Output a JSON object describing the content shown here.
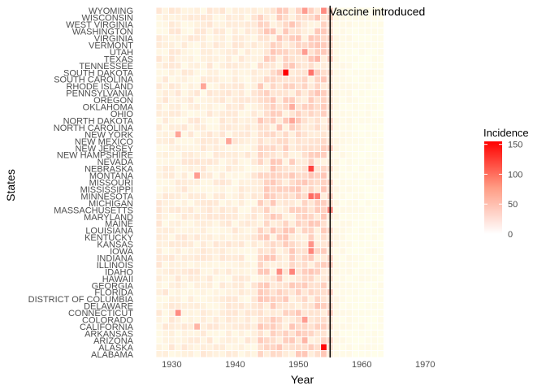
{
  "chart_data": {
    "type": "heatmap",
    "title": "",
    "xlabel": "Year",
    "ylabel": "States",
    "xlim": [
      1927,
      1976
    ],
    "x_ticks": [
      1930,
      1940,
      1950,
      1960,
      1970
    ],
    "y_categories": [
      "ALABAMA",
      "ALASKA",
      "ARIZONA",
      "ARKANSAS",
      "CALIFORNIA",
      "COLORADO",
      "CONNECTICUT",
      "DELAWARE",
      "DISTRICT OF COLUMBIA",
      "FLORIDA",
      "GEORGIA",
      "HAWAII",
      "IDAHO",
      "ILLINOIS",
      "INDIANA",
      "IOWA",
      "KANSAS",
      "KENTUCKY",
      "LOUISIANA",
      "MAINE",
      "MARYLAND",
      "MASSACHUSETTS",
      "MICHIGAN",
      "MINNESOTA",
      "MISSISSIPPI",
      "MISSOURI",
      "MONTANA",
      "NEBRASKA",
      "NEVADA",
      "NEW HAMPSHIRE",
      "NEW JERSEY",
      "NEW MEXICO",
      "NEW YORK",
      "NORTH CAROLINA",
      "NORTH DAKOTA",
      "OHIO",
      "OKLAHOMA",
      "OREGON",
      "PENNSYLVANIA",
      "RHODE ISLAND",
      "SOUTH CAROLINA",
      "SOUTH DAKOTA",
      "TENNESSEE",
      "TEXAS",
      "UTAH",
      "VERMONT",
      "VIRGINIA",
      "WASHINGTON",
      "WEST VIRGINIA",
      "WISCONSIN",
      "WYOMING"
    ],
    "years": [
      1928,
      1963
    ],
    "grid": false,
    "legend": {
      "title": "Incidence",
      "ticks": [
        0,
        50,
        100,
        150
      ],
      "range": [
        0,
        155
      ],
      "low_color": "#ffffff",
      "high_color": "#ff0000",
      "placement": "right"
    },
    "vline": {
      "x": 1955,
      "label": "Vaccine introduced"
    },
    "highlights": [
      {
        "state": "SOUTH DAKOTA",
        "year": 1948,
        "value": 155
      },
      {
        "state": "ALASKA",
        "year": 1954,
        "value": 150
      },
      {
        "state": "NEBRASKA",
        "year": 1952,
        "value": 115
      },
      {
        "state": "SOUTH DAKOTA",
        "year": 1952,
        "value": 85
      },
      {
        "state": "MINNESOTA",
        "year": 1952,
        "value": 90
      },
      {
        "state": "MINNESOTA",
        "year": 1953,
        "value": 80
      },
      {
        "state": "MASSACHUSETTS",
        "year": 1955,
        "value": 75
      },
      {
        "state": "IDAHO",
        "year": 1947,
        "value": 70
      },
      {
        "state": "IDAHO",
        "year": 1949,
        "value": 75
      },
      {
        "state": "IOWA",
        "year": 1952,
        "value": 75
      },
      {
        "state": "KANSAS",
        "year": 1952,
        "value": 65
      },
      {
        "state": "CONNECTICUT",
        "year": 1931,
        "value": 70
      },
      {
        "state": "MONTANA",
        "year": 1934,
        "value": 60
      },
      {
        "state": "NEW MEXICO",
        "year": 1939,
        "value": 55
      },
      {
        "state": "NEW YORK",
        "year": 1931,
        "value": 55
      },
      {
        "state": "RHODE ISLAND",
        "year": 1935,
        "value": 55
      },
      {
        "state": "WYOMING",
        "year": 1954,
        "value": 70
      },
      {
        "state": "WYOMING",
        "year": 1951,
        "value": 60
      },
      {
        "state": "UTAH",
        "year": 1951,
        "value": 60
      },
      {
        "state": "COLORADO",
        "year": 1951,
        "value": 60
      },
      {
        "state": "OKLAHOMA",
        "year": 1949,
        "value": 50
      },
      {
        "state": "NORTH DAKOTA",
        "year": 1949,
        "value": 55
      },
      {
        "state": "CALIFORNIA",
        "year": 1934,
        "value": 45
      },
      {
        "state": "ARIZONA",
        "year": 1951,
        "value": 45
      },
      {
        "state": "TEXAS",
        "year": 1953,
        "value": 45
      }
    ]
  }
}
